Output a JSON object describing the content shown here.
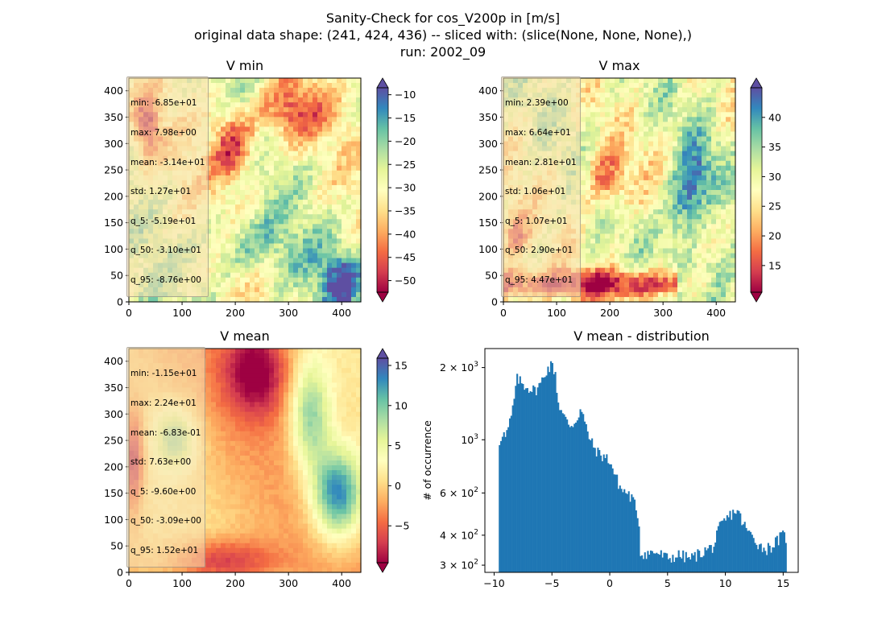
{
  "figure": {
    "title_lines": [
      "Sanity-Check for cos_V200p in [m/s]",
      "original data shape: (241, 424, 436) -- sliced with: (slice(None, None, None),)",
      "run: 2002_09"
    ]
  },
  "colors": {
    "spectral": [
      "#9e0142",
      "#d53e4f",
      "#f46d43",
      "#fdae61",
      "#fee08b",
      "#ffffbf",
      "#e6f598",
      "#abdda4",
      "#66c2a5",
      "#3288bd",
      "#5e4fa2"
    ],
    "hist_bar": "#1f77b4"
  },
  "chart_data": [
    {
      "type": "heatmap",
      "title": "V min",
      "colormap": "Spectral",
      "x_ticks": [
        0,
        100,
        200,
        300,
        400
      ],
      "y_ticks": [
        0,
        50,
        100,
        150,
        200,
        250,
        300,
        350,
        400
      ],
      "xlim": [
        0,
        436
      ],
      "ylim": [
        0,
        424
      ],
      "colorbar": {
        "ticks": [
          -10,
          -15,
          -20,
          -25,
          -30,
          -35,
          -40,
          -45,
          -50
        ],
        "range": [
          -52.5,
          -8.5
        ],
        "extend": "both"
      },
      "stats": [
        "min: -6.85e+01",
        "max: 7.98e+00",
        "mean: -3.14e+01",
        "std: 1.27e+01",
        "q_5: -5.19e+01",
        "q_50: -3.10e+01",
        "q_95: -8.76e+00"
      ]
    },
    {
      "type": "heatmap",
      "title": "V max",
      "colormap": "Spectral",
      "x_ticks": [
        0,
        100,
        200,
        300,
        400
      ],
      "y_ticks": [
        0,
        50,
        100,
        150,
        200,
        250,
        300,
        350,
        400
      ],
      "xlim": [
        0,
        436
      ],
      "ylim": [
        0,
        424
      ],
      "colorbar": {
        "ticks": [
          40,
          35,
          30,
          25,
          20,
          15
        ],
        "range": [
          10.5,
          45
        ],
        "extend": "both"
      },
      "stats": [
        "min: 2.39e+00",
        "max: 6.64e+01",
        "mean: 2.81e+01",
        "std: 1.06e+01",
        "q_5: 1.07e+01",
        "q_50: 2.90e+01",
        "q_95: 4.47e+01"
      ]
    },
    {
      "type": "heatmap",
      "title": "V mean",
      "colormap": "Spectral",
      "x_ticks": [
        0,
        100,
        200,
        300,
        400
      ],
      "y_ticks": [
        0,
        50,
        100,
        150,
        200,
        250,
        300,
        350,
        400
      ],
      "xlim": [
        0,
        436
      ],
      "ylim": [
        0,
        424
      ],
      "colorbar": {
        "ticks": [
          15,
          10,
          5,
          0,
          -5
        ],
        "range": [
          -9.6,
          15.9
        ],
        "extend": "both"
      },
      "stats": [
        "min: -1.15e+01",
        "max: 2.24e+01",
        "mean: -6.83e-01",
        "std: 7.63e+00",
        "q_5: -9.60e+00",
        "q_50: -3.09e+00",
        "q_95: 1.52e+01"
      ]
    },
    {
      "type": "bar",
      "title": "V mean - distribution",
      "ylabel": "# of occurrence",
      "y_scale": "log",
      "xlim": [
        -10.8,
        16.3
      ],
      "ylim": [
        280,
        2400
      ],
      "x_ticks": [
        -10,
        -5,
        0,
        5,
        10,
        15
      ],
      "y_ticks": [
        {
          "value": 2000,
          "base": "2 × 10",
          "exp": "3"
        },
        {
          "value": 1000,
          "base": "10",
          "exp": "3"
        },
        {
          "value": 600,
          "base": "6 × 10",
          "exp": "2"
        },
        {
          "value": 400,
          "base": "4 × 10",
          "exp": "2"
        },
        {
          "value": 300,
          "base": "3 × 10",
          "exp": "2"
        }
      ],
      "anchors": [
        [
          -9.6,
          950
        ],
        [
          -9.3,
          1080
        ],
        [
          -9.0,
          1020
        ],
        [
          -8.5,
          1250
        ],
        [
          -8.0,
          1800
        ],
        [
          -7.5,
          1700
        ],
        [
          -7.0,
          1650
        ],
        [
          -6.5,
          1600
        ],
        [
          -6.0,
          1700
        ],
        [
          -5.5,
          1950
        ],
        [
          -5.0,
          2050
        ],
        [
          -4.7,
          1900
        ],
        [
          -4.5,
          1450
        ],
        [
          -4.0,
          1250
        ],
        [
          -3.5,
          1150
        ],
        [
          -3.0,
          1180
        ],
        [
          -2.5,
          1350
        ],
        [
          -2.0,
          1100
        ],
        [
          -1.5,
          950
        ],
        [
          -1.0,
          880
        ],
        [
          -0.5,
          850
        ],
        [
          0.0,
          820
        ],
        [
          0.5,
          700
        ],
        [
          1.0,
          620
        ],
        [
          1.5,
          600
        ],
        [
          2.0,
          560
        ],
        [
          2.5,
          480
        ],
        [
          2.6,
          340
        ],
        [
          3.0,
          335
        ],
        [
          4.0,
          340
        ],
        [
          5.0,
          320
        ],
        [
          6.0,
          330
        ],
        [
          7.0,
          320
        ],
        [
          8.0,
          340
        ],
        [
          8.5,
          350
        ],
        [
          9.0,
          360
        ],
        [
          9.5,
          430
        ],
        [
          10.0,
          460
        ],
        [
          10.5,
          490
        ],
        [
          11.0,
          510
        ],
        [
          11.5,
          450
        ],
        [
          12.0,
          410
        ],
        [
          12.5,
          390
        ],
        [
          13.0,
          360
        ],
        [
          13.5,
          350
        ],
        [
          14.0,
          360
        ],
        [
          14.5,
          380
        ],
        [
          15.0,
          400
        ],
        [
          15.2,
          390
        ]
      ],
      "bin_width": 0.127
    }
  ]
}
